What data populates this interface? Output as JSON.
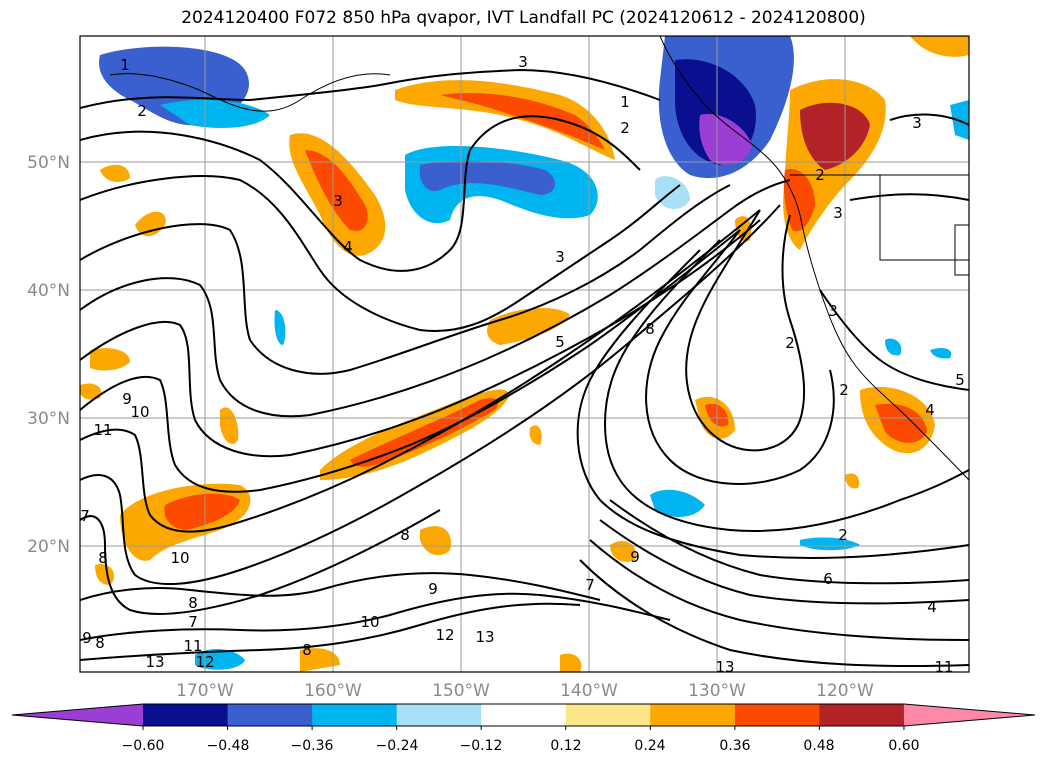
{
  "title": "2024120400 F072 850 hPa qvapor, IVT Landfall PC (2024120612 - 2024120800)",
  "lat_labels": [
    "50°N",
    "40°N",
    "30°N",
    "20°N"
  ],
  "lon_labels": [
    "170°W",
    "160°W",
    "150°W",
    "140°W",
    "130°W",
    "120°W"
  ],
  "contour_labels": [
    "1",
    "2",
    "3",
    "2",
    "1",
    "2",
    "3",
    "4",
    "3",
    "3",
    "5",
    "8",
    "9",
    "10",
    "11",
    "7",
    "8",
    "10",
    "8",
    "7",
    "8",
    "11",
    "9",
    "10",
    "12",
    "13",
    "13",
    "12",
    "13",
    "8",
    "9",
    "8",
    "7",
    "9",
    "6",
    "2",
    "3",
    "2",
    "4",
    "5",
    "11",
    "4",
    "2",
    "3"
  ],
  "colorbar": {
    "tick_labels": [
      "−0.60",
      "−0.48",
      "−0.36",
      "−0.24",
      "−0.12",
      "0.12",
      "0.24",
      "0.36",
      "0.48",
      "0.60"
    ],
    "colors": [
      "#9b3fd4",
      "#0a0f8f",
      "#3a5fcf",
      "#00b4f0",
      "#a8e0f8",
      "#ffffff",
      "#fde68a",
      "#fca800",
      "#fc4a00",
      "#b32226",
      "#ff88a8"
    ]
  }
}
